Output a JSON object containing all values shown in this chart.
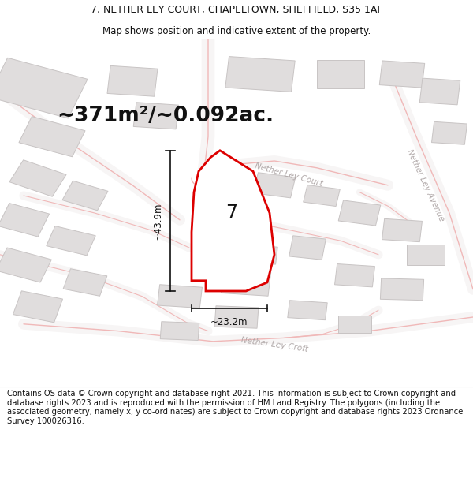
{
  "title": "7, NETHER LEY COURT, CHAPELTOWN, SHEFFIELD, S35 1AF",
  "subtitle": "Map shows position and indicative extent of the property.",
  "area_text": "~371m²/~0.092ac.",
  "property_number": "7",
  "dim_width": "~23.2m",
  "dim_height": "~43.9m",
  "street_label_1": "Nether Ley Court",
  "street_label_2": "Nether Ley Avenue",
  "street_label_3": "Nether Ley Croft",
  "footer_text": "Contains OS data © Crown copyright and database right 2021. This information is subject to Crown copyright and database rights 2023 and is reproduced with the permission of HM Land Registry. The polygons (including the associated geometry, namely x, y co-ordinates) are subject to Crown copyright and database rights 2023 Ordnance Survey 100026316.",
  "map_bg": "#f7f5f5",
  "road_color": "#f0b8b8",
  "road_lw": 1.0,
  "building_fill": "#e0dddd",
  "building_edge": "#c8c4c4",
  "prop_fill": "#ffffff",
  "prop_edge": "#dd0000",
  "prop_edge_lw": 2.0,
  "text_color_dim": "#111111",
  "text_color_street": "#b0a8a8",
  "footer_fontsize": 7.2,
  "title_fontsize": 9.0,
  "subtitle_fontsize": 8.5,
  "area_fontsize": 19,
  "dim_fontsize": 8.5,
  "street_fontsize": 7.5,
  "property_num_fontsize": 17
}
